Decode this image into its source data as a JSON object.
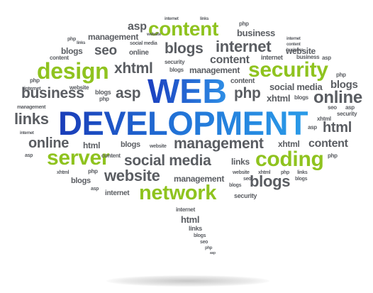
{
  "words": {
    "web": "WEB",
    "development": "DEVELOPMENT",
    "content": "content",
    "design": "design",
    "security": "security",
    "server": "server",
    "coding": "coding",
    "network": "network",
    "asp": "asp",
    "php": "php",
    "business": "business",
    "internet": "internet",
    "website": "website",
    "management": "management",
    "blogs": "blogs",
    "seo": "seo",
    "online": "online",
    "xhtml": "xhtml",
    "html": "html",
    "links": "links",
    "social_media": "social media"
  },
  "colors": {
    "primary_blue": "#1e57c8",
    "accent_green": "#8fc31f",
    "text_gray": "#5a5d62"
  }
}
